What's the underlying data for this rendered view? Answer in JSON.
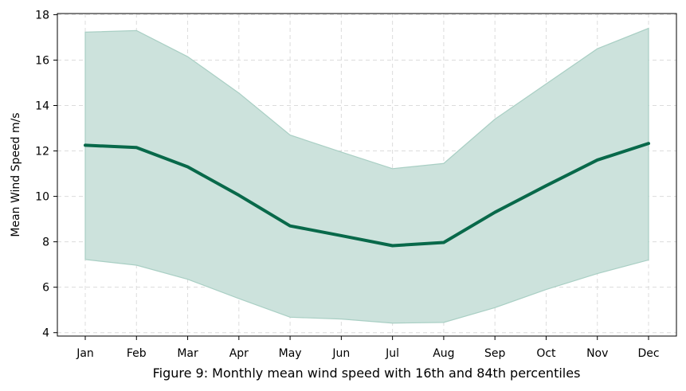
{
  "chart_data": {
    "type": "line",
    "caption": "Figure 9: Monthly mean wind speed with 16th and 84th percentiles",
    "xlabel": "",
    "ylabel": "Mean Wind Speed m/s",
    "categories": [
      "Jan",
      "Feb",
      "Mar",
      "Apr",
      "May",
      "Jun",
      "Jul",
      "Aug",
      "Sep",
      "Oct",
      "Nov",
      "Dec"
    ],
    "series": [
      {
        "values": [
          12.25,
          12.15,
          11.3,
          10.05,
          8.7,
          8.27,
          7.83,
          7.97,
          9.3,
          10.47,
          11.6,
          12.33
        ]
      }
    ],
    "band": {
      "lower": [
        7.22,
        6.97,
        6.35,
        5.5,
        4.68,
        4.6,
        4.42,
        4.45,
        5.1,
        5.9,
        6.6,
        7.2
      ],
      "upper": [
        17.23,
        17.3,
        16.15,
        14.55,
        12.7,
        11.95,
        11.22,
        11.45,
        13.4,
        14.95,
        16.5,
        17.4
      ]
    },
    "ylim": [
      3.85,
      18.05
    ],
    "yticks": [
      4,
      6,
      8,
      10,
      12,
      14,
      16,
      18
    ],
    "grid": true,
    "colors": {
      "line": "#08694a",
      "band": "#cce2dc",
      "band_edge": "#a9cfc4",
      "grid": "#dcdcdc"
    }
  }
}
